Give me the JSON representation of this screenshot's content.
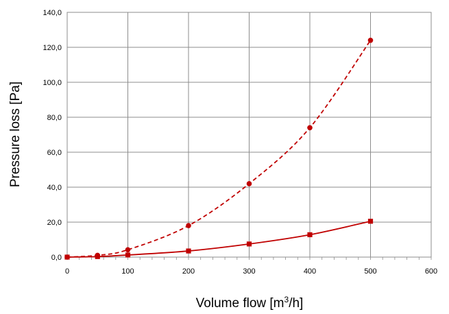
{
  "chart_data": {
    "type": "line",
    "xlabel": "Volume flow [m³/h]",
    "ylabel": "Pressure loss [Pa]",
    "xlim": [
      0,
      600
    ],
    "ylim": [
      0,
      140
    ],
    "x_ticks": [
      "0",
      "100",
      "200",
      "300",
      "400",
      "500",
      "600"
    ],
    "y_ticks": [
      "0,0",
      "20,0",
      "40,0",
      "60,0",
      "80,0",
      "100,0",
      "120,0",
      "140,0"
    ],
    "grid": true,
    "legend": "none",
    "series": [
      {
        "style": "dashed",
        "marker": "circle",
        "color": "#c00000",
        "x": [
          0,
          50,
          100,
          200,
          300,
          400,
          500
        ],
        "y": [
          0.0,
          1.0,
          4.2,
          18.0,
          42.0,
          74.0,
          124.0
        ]
      },
      {
        "style": "solid",
        "marker": "square",
        "color": "#c00000",
        "x": [
          0,
          50,
          100,
          200,
          300,
          400,
          500
        ],
        "y": [
          0.0,
          0.3,
          1.2,
          3.5,
          7.5,
          12.8,
          20.5
        ]
      }
    ]
  }
}
